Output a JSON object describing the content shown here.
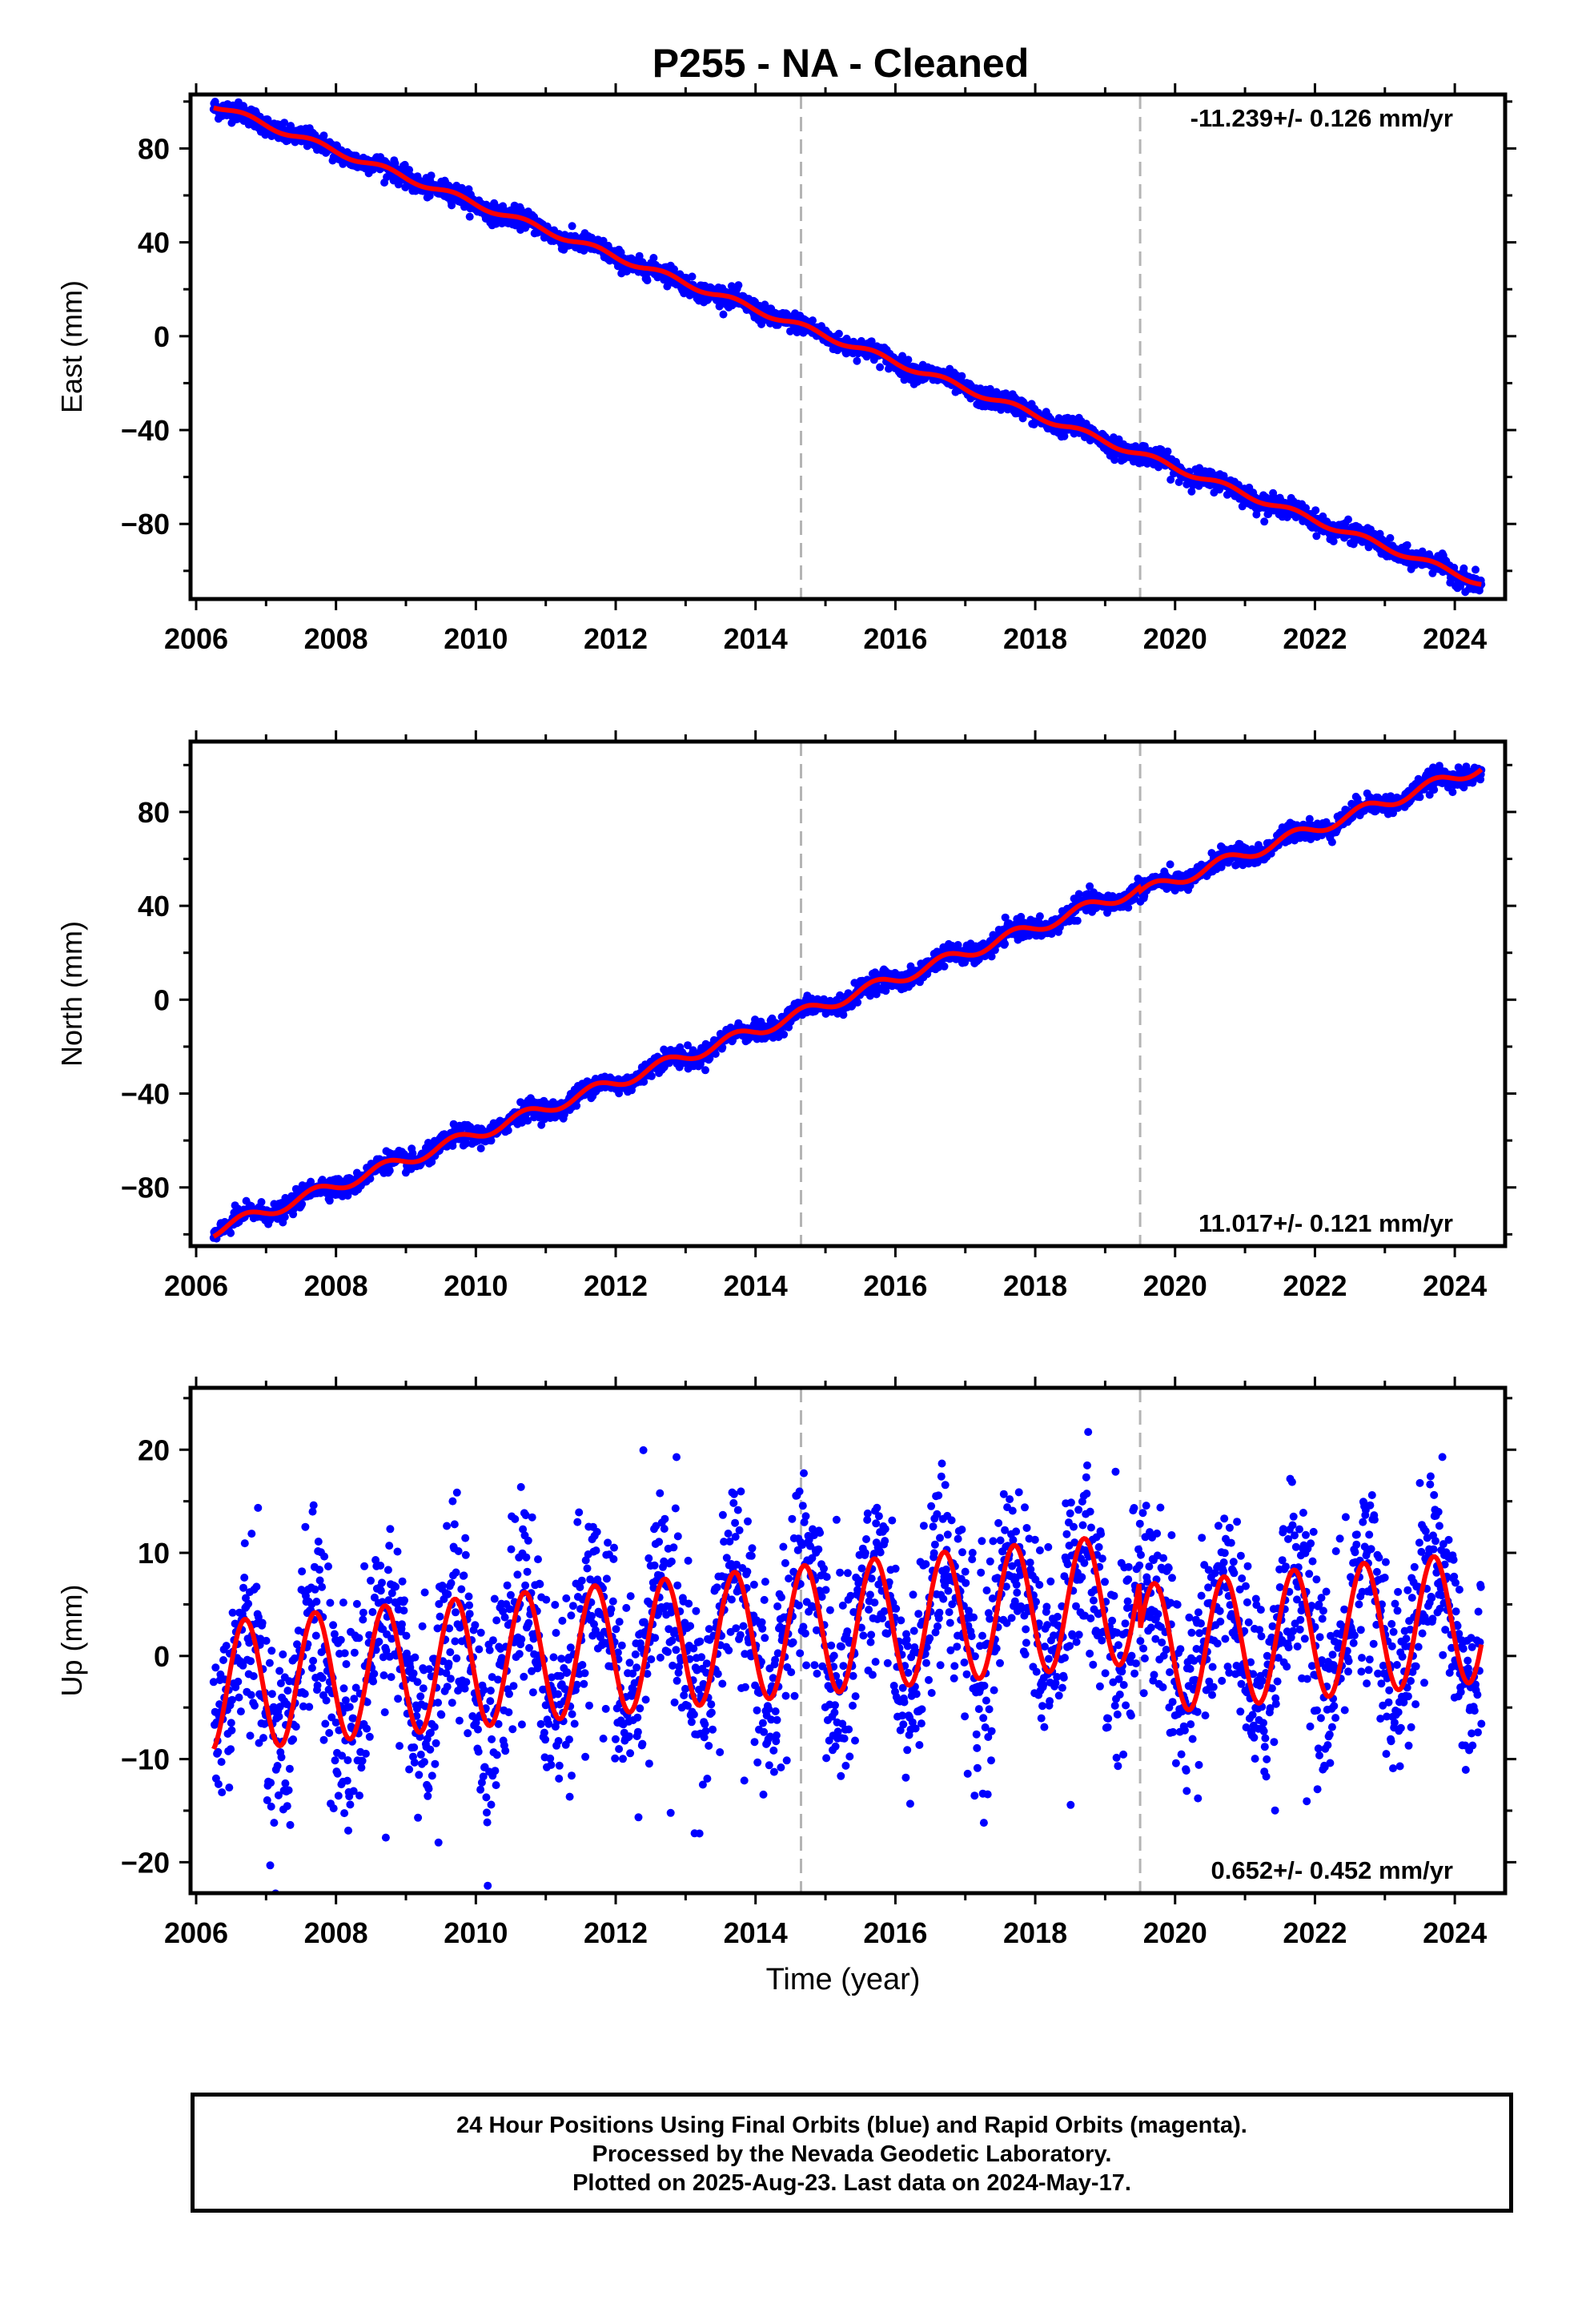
{
  "title": "P255  - NA - Cleaned",
  "xlabel": "Time (year)",
  "footer": [
    "24 Hour Positions Using Final Orbits (blue) and Rapid Orbits (magenta).",
    "Processed by the Nevada Geodetic Laboratory.",
    "Plotted on 2025-Aug-23. Last data on 2024-May-17."
  ],
  "colors": {
    "data": "#0000ff",
    "model": "#ff0000",
    "event_line": "#b4b4b4",
    "axes": "#000000"
  },
  "chart_data": [
    {
      "type": "scatter",
      "name": "east",
      "ylabel": "East (mm)",
      "rate_label": "-11.239+/- 0.126 mm/yr",
      "rate_label_position": "top-right",
      "xlim": [
        2005.92,
        2024.72
      ],
      "ylim": [
        -112,
        103
      ],
      "xticks": [
        2006,
        2008,
        2010,
        2012,
        2014,
        2016,
        2018,
        2020,
        2022,
        2024
      ],
      "yticks": [
        80,
        40,
        0,
        -40,
        -80
      ],
      "ytick_labels": [
        "80",
        "40",
        "0",
        "−40",
        "−80"
      ],
      "event_lines": [
        2014.65,
        2019.5
      ],
      "model": {
        "t0": 2006.3,
        "intercept": 98,
        "rate": -11.239,
        "seasonal_amp": 1.3,
        "steps": [
          {
            "t": 2014.65,
            "offset": 0
          },
          {
            "t": 2019.5,
            "offset": 0
          }
        ]
      },
      "x_range": [
        2006.25,
        2024.38
      ],
      "scatter": 2.0,
      "grid": false
    },
    {
      "type": "scatter",
      "name": "north",
      "ylabel": "North (mm)",
      "rate_label": "11.017+/- 0.121 mm/yr",
      "rate_label_position": "bottom-right",
      "xlim": [
        2005.92,
        2024.72
      ],
      "ylim": [
        -105,
        110
      ],
      "xticks": [
        2006,
        2008,
        2010,
        2012,
        2014,
        2016,
        2018,
        2020,
        2022,
        2024
      ],
      "yticks": [
        80,
        40,
        0,
        -40,
        -80
      ],
      "ytick_labels": [
        "80",
        "40",
        "0",
        "−40",
        "−80"
      ],
      "event_lines": [
        2014.65,
        2019.5
      ],
      "model": {
        "t0": 2006.3,
        "intercept": -98,
        "rate": 11.017,
        "seasonal_amp": 2.5,
        "steps": [
          {
            "t": 2014.65,
            "offset": 0
          },
          {
            "t": 2019.5,
            "offset": -2
          }
        ]
      },
      "x_range": [
        2006.25,
        2024.38
      ],
      "scatter": 2.0,
      "grid": false
    },
    {
      "type": "scatter",
      "name": "up",
      "ylabel": "Up (mm)",
      "rate_label": "0.652+/- 0.452 mm/yr",
      "rate_label_position": "bottom-right",
      "xlim": [
        2005.92,
        2024.72
      ],
      "ylim": [
        -23,
        26
      ],
      "xticks": [
        2006,
        2008,
        2010,
        2012,
        2014,
        2016,
        2018,
        2020,
        2022,
        2024
      ],
      "yticks": [
        20,
        10,
        0,
        -10,
        -20
      ],
      "ytick_labels": [
        "20",
        "10",
        "0",
        "−10",
        "−20"
      ],
      "event_lines": [
        2014.65,
        2019.5
      ],
      "model": {
        "t0": 2006.3,
        "intercept": -3,
        "rate": 0.652,
        "seasonal_amp": 6.3,
        "steps": [
          {
            "t": 2014.65,
            "offset": 0
          },
          {
            "t": 2019.5,
            "offset": -5
          }
        ]
      },
      "x_range": [
        2006.25,
        2024.38
      ],
      "scatter": 4.5,
      "grid": false
    }
  ]
}
